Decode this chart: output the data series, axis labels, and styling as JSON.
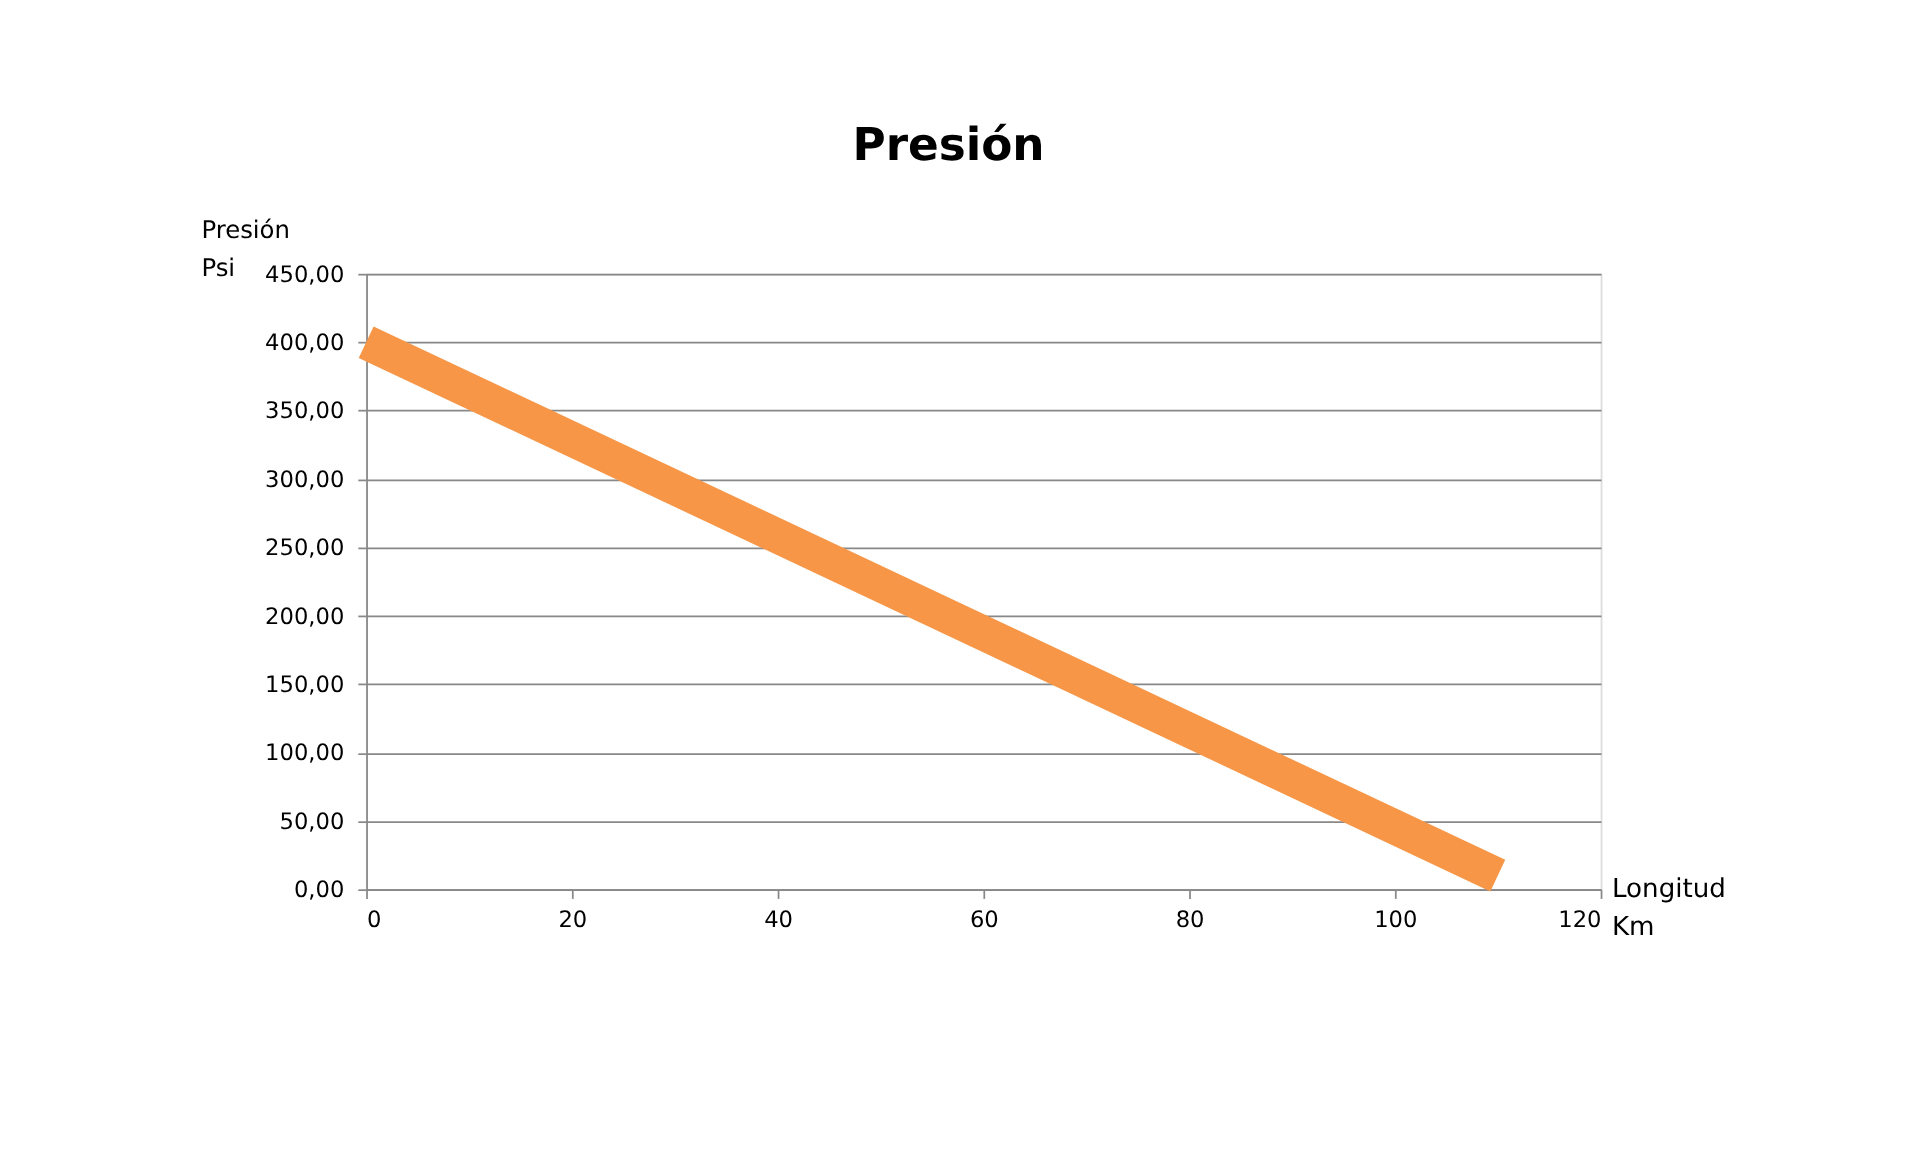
{
  "chart_data": {
    "type": "line",
    "title": "Presión",
    "xlabel": "Longitud\nKm",
    "ylabel": "Presión\nPsi",
    "x": [
      0,
      110
    ],
    "series": [
      {
        "color": "#f79646",
        "values": [
          400,
          10
        ]
      }
    ],
    "xlim": [
      0,
      120
    ],
    "xticks": [
      0,
      20,
      40,
      60,
      80,
      100,
      120
    ],
    "ylim": [
      0,
      450
    ],
    "yticks": [
      {
        "value": 0,
        "label": "0,00"
      },
      {
        "value": 50,
        "label": "50,00"
      },
      {
        "value": 100,
        "label": "100,00"
      },
      {
        "value": 150,
        "label": "150,00"
      },
      {
        "value": 200,
        "label": "200,00"
      },
      {
        "value": 250,
        "label": "250,00"
      },
      {
        "value": 300,
        "label": "300,00"
      },
      {
        "value": 350,
        "label": "350,00"
      },
      {
        "value": 400,
        "label": "400,00"
      },
      {
        "value": 450,
        "label": "450,00"
      }
    ],
    "grid": "y",
    "marker": "none",
    "line_style": "solid"
  }
}
